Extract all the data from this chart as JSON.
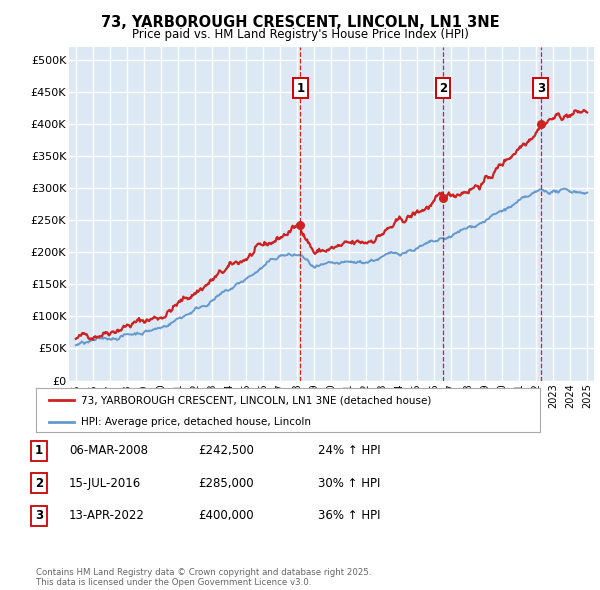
{
  "title": "73, YARBOROUGH CRESCENT, LINCOLN, LN1 3NE",
  "subtitle": "Price paid vs. HM Land Registry's House Price Index (HPI)",
  "ylabel_ticks": [
    "£0",
    "£50K",
    "£100K",
    "£150K",
    "£200K",
    "£250K",
    "£300K",
    "£350K",
    "£400K",
    "£450K",
    "£500K"
  ],
  "ytick_values": [
    0,
    50000,
    100000,
    150000,
    200000,
    250000,
    300000,
    350000,
    400000,
    450000,
    500000
  ],
  "ylim": [
    0,
    520000
  ],
  "xlim_start": 1994.6,
  "xlim_end": 2025.4,
  "background_color": "#dce9f5",
  "grid_color": "#ffffff",
  "sale_dates": [
    2008.17,
    2016.54,
    2022.28
  ],
  "sale_prices": [
    242500,
    285000,
    400000
  ],
  "sale_labels": [
    "1",
    "2",
    "3"
  ],
  "vline_color": "#cc0000",
  "sale_box_edge": "#cc0000",
  "red_line_color": "#cc2222",
  "blue_line_color": "#6699cc",
  "legend_entries": [
    "73, YARBOROUGH CRESCENT, LINCOLN, LN1 3NE (detached house)",
    "HPI: Average price, detached house, Lincoln"
  ],
  "table_data": [
    [
      "1",
      "06-MAR-2008",
      "£242,500",
      "24% ↑ HPI"
    ],
    [
      "2",
      "15-JUL-2016",
      "£285,000",
      "30% ↑ HPI"
    ],
    [
      "3",
      "13-APR-2022",
      "£400,000",
      "36% ↑ HPI"
    ]
  ],
  "footer": "Contains HM Land Registry data © Crown copyright and database right 2025.\nThis data is licensed under the Open Government Licence v3.0.",
  "xtick_years": [
    1995,
    1996,
    1997,
    1998,
    1999,
    2000,
    2001,
    2002,
    2003,
    2004,
    2005,
    2006,
    2007,
    2008,
    2009,
    2010,
    2011,
    2012,
    2013,
    2014,
    2015,
    2016,
    2017,
    2018,
    2019,
    2020,
    2021,
    2022,
    2023,
    2024,
    2025
  ]
}
